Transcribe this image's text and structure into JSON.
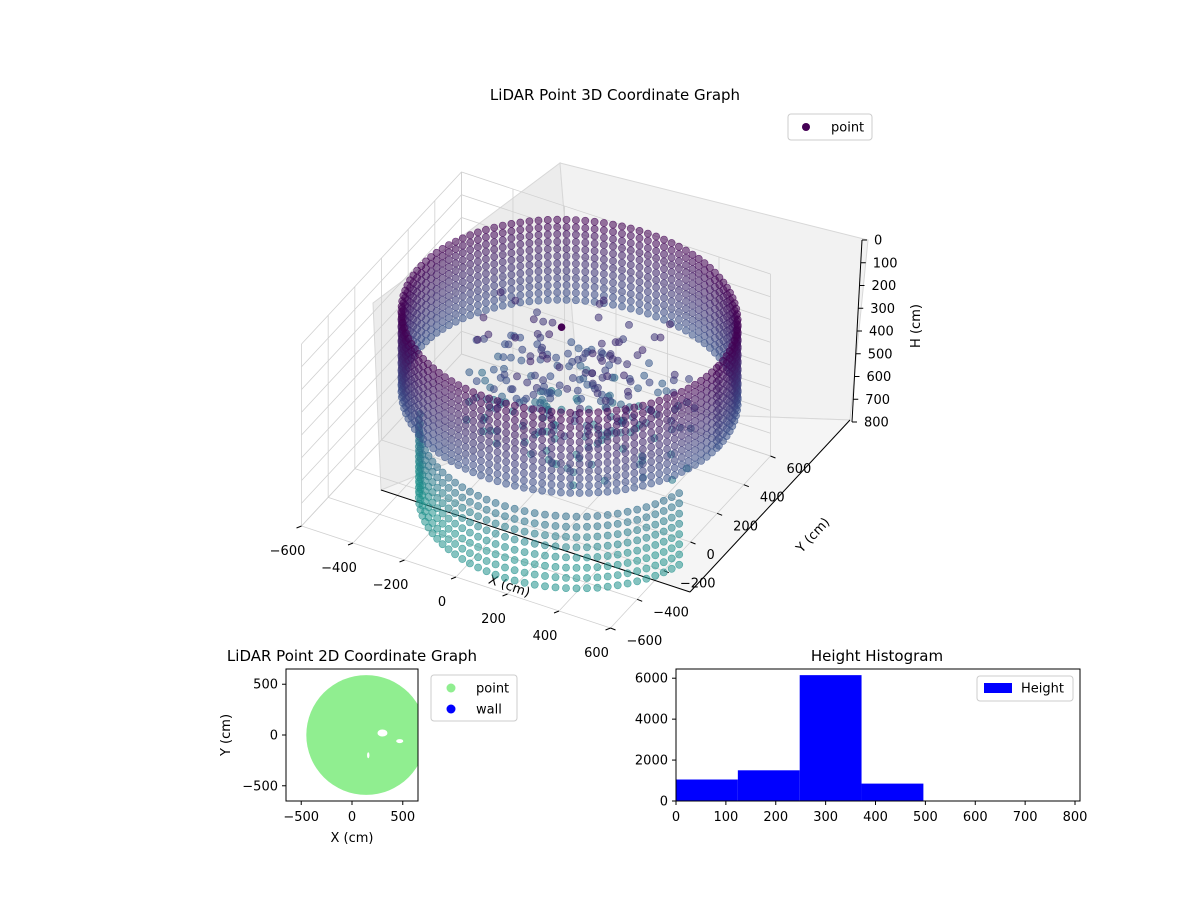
{
  "chart_data": [
    {
      "type": "scatter",
      "projection": "3d",
      "title": "LiDAR Point 3D Coordinate Graph",
      "xlabel": "X (cm)",
      "ylabel": "Y (cm)",
      "zlabel": "H (cm)",
      "xlim": [
        -600,
        600
      ],
      "ylim": [
        -600,
        600
      ],
      "zlim": [
        0,
        800
      ],
      "z_inverted": true,
      "xticks": [
        -600,
        -400,
        -200,
        0,
        200,
        400,
        600
      ],
      "yticks": [
        -600,
        -400,
        -200,
        0,
        200,
        400,
        600
      ],
      "zticks": [
        0,
        100,
        200,
        300,
        400,
        500,
        600,
        700,
        800
      ],
      "legend": {
        "placement": "top-right",
        "entries": [
          {
            "label": "point",
            "color": "#440154"
          }
        ]
      },
      "colormap": "viridis",
      "series": [
        {
          "name": "point",
          "shape": "cylindrical wall of points, radius ~580 cm, heights ~0-380 cm, plus scattered interior objects and lower band ~500-850 cm on front side",
          "radius": 580,
          "wall_height": [
            0,
            380
          ],
          "lower_band_height": [
            500,
            850
          ]
        }
      ]
    },
    {
      "type": "scatter",
      "title": "LiDAR Point 2D Coordinate Graph",
      "xlabel": "X (cm)",
      "ylabel": "Y (cm)",
      "xlim": [
        -650,
        650
      ],
      "ylim": [
        -650,
        650
      ],
      "xticks": [
        -500,
        0,
        500
      ],
      "yticks": [
        -500,
        0,
        500
      ],
      "legend": {
        "placement": "outside-right",
        "entries": [
          {
            "label": "point",
            "color": "#90ee90"
          },
          {
            "label": "wall",
            "color": "#0000ff"
          }
        ]
      },
      "series": [
        {
          "name": "point",
          "shape": "filled disk of radius ~590 cm centered near (120, 0)",
          "color": "#90ee90"
        }
      ]
    },
    {
      "type": "bar",
      "subtype": "histogram",
      "title": "Height Histogram",
      "xlabel": "",
      "ylabel": "",
      "xlim": [
        0,
        810
      ],
      "ylim": [
        0,
        6450
      ],
      "xticks": [
        0,
        100,
        200,
        300,
        400,
        500,
        600,
        700,
        800
      ],
      "yticks": [
        0,
        2000,
        4000,
        6000
      ],
      "legend": {
        "placement": "top-right",
        "entries": [
          {
            "label": "Height",
            "color": "#0000ff"
          }
        ]
      },
      "bins": [
        {
          "x0": 0,
          "x1": 124,
          "value": 1050
        },
        {
          "x0": 124,
          "x1": 248,
          "value": 1500
        },
        {
          "x0": 248,
          "x1": 372,
          "value": 6150
        },
        {
          "x0": 372,
          "x1": 496,
          "value": 850
        },
        {
          "x0": 496,
          "x1": 620,
          "value": 0
        },
        {
          "x0": 620,
          "x1": 744,
          "value": 0
        },
        {
          "x0": 744,
          "x1": 868,
          "value": 0
        }
      ],
      "color": "#0000ff"
    }
  ]
}
